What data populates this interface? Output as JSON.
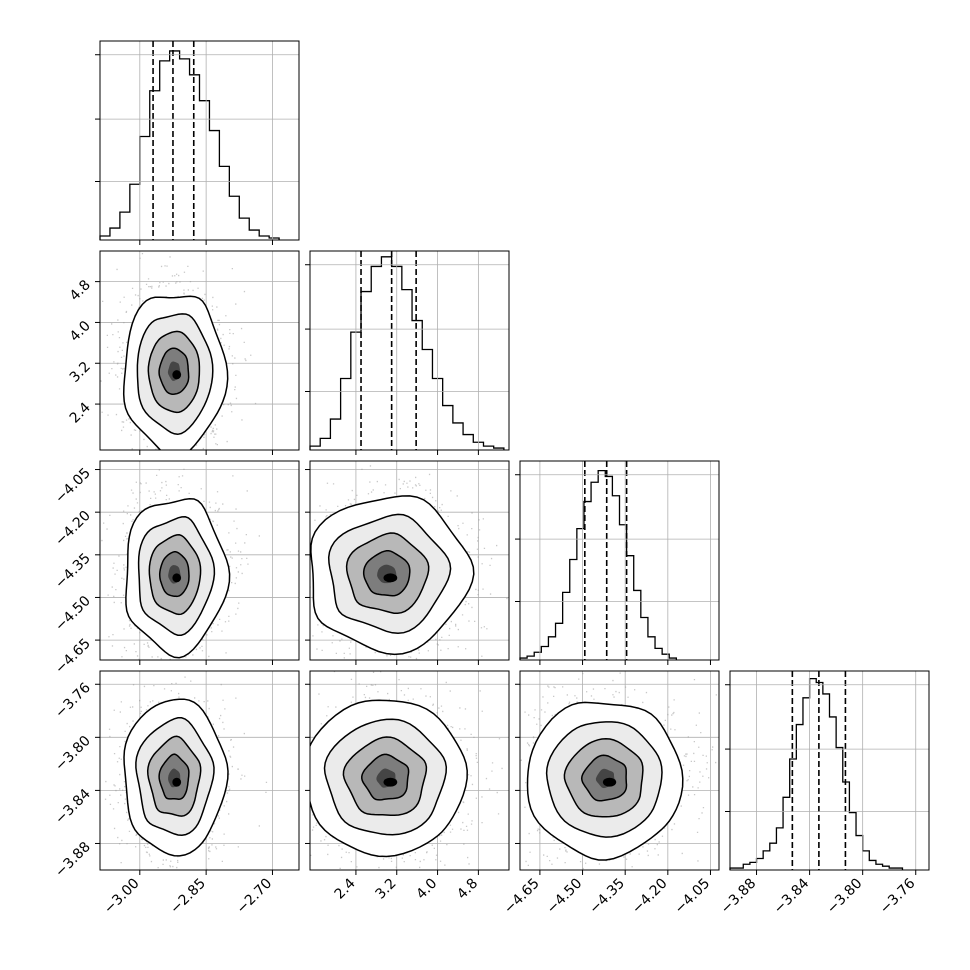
{
  "chart_data": {
    "type": "corner",
    "title": "",
    "parameters": [
      {
        "range": [
          -3.09,
          -2.64
        ],
        "ticks": [
          "−3.00",
          "−2.85",
          "−2.70"
        ],
        "tick_values": [
          -3.0,
          -2.85,
          -2.7
        ],
        "quantiles": [
          -2.97,
          -2.925,
          -2.878
        ],
        "histogram": {
          "edges": [
            -3.09,
            -3.0675,
            -3.045,
            -3.0225,
            -3.0,
            -2.9775,
            -2.955,
            -2.9325,
            -2.91,
            -2.8875,
            -2.865,
            -2.8425,
            -2.82,
            -2.7975,
            -2.775,
            -2.7525,
            -2.73,
            -2.7075,
            -2.685
          ],
          "counts": [
            2,
            6,
            14,
            28,
            52,
            75,
            90,
            95,
            91,
            83,
            70,
            55,
            37,
            22,
            11,
            5,
            2,
            1
          ],
          "ymax": 100
        }
      },
      {
        "range": [
          1.5,
          5.4
        ],
        "ticks": [
          "2.4",
          "3.2",
          "4.0",
          "4.8"
        ],
        "tick_values": [
          2.4,
          3.2,
          4.0,
          4.8
        ],
        "quantiles": [
          2.5,
          3.1,
          3.58
        ],
        "histogram": {
          "edges": [
            1.5,
            1.7,
            1.9,
            2.1,
            2.3,
            2.5,
            2.7,
            2.9,
            3.1,
            3.3,
            3.5,
            3.7,
            3.9,
            4.1,
            4.3,
            4.5,
            4.7,
            4.9,
            5.1,
            5.3
          ],
          "counts": [
            2,
            6,
            16,
            37,
            61,
            82,
            95,
            100,
            95,
            83,
            67,
            52,
            37,
            23,
            14,
            8,
            4,
            2,
            1
          ],
          "ymax": 103
        }
      },
      {
        "range": [
          -4.72,
          -4.02
        ],
        "ticks": [
          "−4.65",
          "−4.50",
          "−4.35",
          "−4.20",
          "−4.05"
        ],
        "tick_values": [
          -4.65,
          -4.5,
          -4.35,
          -4.2,
          -4.05
        ],
        "quantiles": [
          -4.492,
          -4.415,
          -4.345
        ],
        "histogram": {
          "edges": [
            -4.72,
            -4.695,
            -4.67,
            -4.645,
            -4.62,
            -4.595,
            -4.57,
            -4.545,
            -4.52,
            -4.495,
            -4.47,
            -4.445,
            -4.42,
            -4.395,
            -4.37,
            -4.345,
            -4.32,
            -4.295,
            -4.27,
            -4.245,
            -4.22,
            -4.195,
            -4.17
          ],
          "counts": [
            1,
            2,
            4,
            7,
            12,
            19,
            35,
            52,
            68,
            82,
            92,
            98,
            95,
            85,
            70,
            54,
            36,
            22,
            12,
            6,
            3,
            1
          ],
          "ymax": 103
        }
      },
      {
        "range": [
          -3.9,
          -3.75
        ],
        "ticks": [
          "−3.88",
          "−3.84",
          "−3.80",
          "−3.76"
        ],
        "tick_values": [
          -3.88,
          -3.84,
          -3.8,
          -3.76
        ],
        "quantiles": [
          -3.853,
          -3.833,
          -3.813
        ],
        "histogram": {
          "edges": [
            -3.9,
            -3.895,
            -3.89,
            -3.885,
            -3.88,
            -3.875,
            -3.87,
            -3.865,
            -3.86,
            -3.855,
            -3.85,
            -3.845,
            -3.84,
            -3.835,
            -3.83,
            -3.825,
            -3.82,
            -3.815,
            -3.81,
            -3.805,
            -3.8,
            -3.795,
            -3.79,
            -3.785,
            -3.78,
            -3.775,
            -3.77
          ],
          "counts": [
            1,
            1,
            3,
            4,
            6,
            10,
            14,
            22,
            38,
            58,
            76,
            90,
            100,
            98,
            92,
            80,
            64,
            46,
            30,
            18,
            10,
            5,
            3,
            2,
            1,
            1
          ],
          "ymax": 104
        }
      }
    ],
    "joint_peaks": [
      {
        "row": 1,
        "col": 0,
        "center": [
          -2.922,
          3.05
        ],
        "spread": [
          0.055,
          0.75
        ]
      },
      {
        "row": 2,
        "col": 0,
        "center": [
          -2.922,
          -4.418
        ],
        "spread": [
          0.055,
          0.13
        ]
      },
      {
        "row": 2,
        "col": 1,
        "center": [
          3.0,
          -4.418
        ],
        "spread": [
          0.75,
          0.13
        ]
      },
      {
        "row": 3,
        "col": 0,
        "center": [
          -2.922,
          -3.831
        ],
        "spread": [
          0.055,
          0.028
        ]
      },
      {
        "row": 3,
        "col": 1,
        "center": [
          3.0,
          -3.831
        ],
        "spread": [
          0.75,
          0.028
        ]
      },
      {
        "row": 3,
        "col": 2,
        "center": [
          -4.418,
          -3.831
        ],
        "spread": [
          0.13,
          0.028
        ]
      }
    ],
    "contour_levels": 4,
    "grid": true,
    "colors": {
      "lines": "#000000",
      "density": "#000000",
      "grid": "#b0b0b0",
      "points": "#9a9a9a"
    }
  }
}
